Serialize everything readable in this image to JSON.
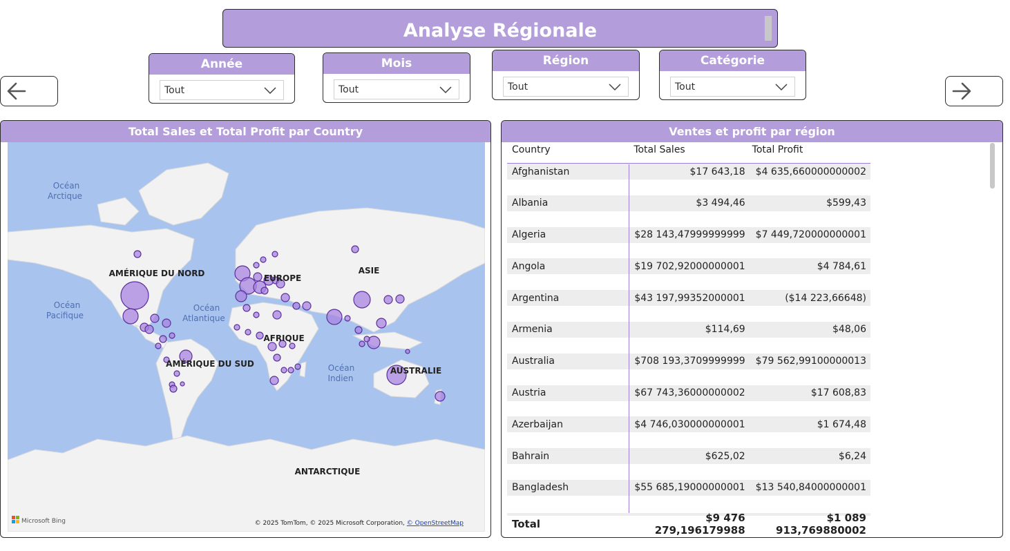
{
  "header": {
    "title": "Analyse Régionale"
  },
  "filters": [
    {
      "label": "Année",
      "value": "Tout"
    },
    {
      "label": "Mois",
      "value": "Tout"
    },
    {
      "label": "Région",
      "value": "Tout"
    },
    {
      "label": "Catégorie",
      "value": "Tout"
    }
  ],
  "nav": {
    "back_icon": "arrow-left-icon",
    "forward_icon": "arrow-right-icon"
  },
  "map_panel": {
    "title": "Total Sales et Total Profit par Country",
    "labels": {
      "ocean_arctic_1": "Océan",
      "ocean_arctic_2": "Arctique",
      "ocean_pacific_1": "Océan",
      "ocean_pacific_2": "Pacifique",
      "ocean_atlantic_1": "Océan",
      "ocean_atlantic_2": "Atlantique",
      "ocean_indian_1": "Océan",
      "ocean_indian_2": "Indien",
      "north_america": "AMÉRIQUE DU NORD",
      "south_america": "AMÉRIQUE DU SUD",
      "europe": "EUROPE",
      "asia": "ASIE",
      "africa": "AFRIQUE",
      "australia": "AUSTRALIE",
      "antarctica": "ANTARCTIQUE"
    },
    "provider": "Microsoft Bing",
    "attribution": "© 2025 TomTom, © 2025 Microsoft Corporation, ",
    "attribution_link": "© OpenStreetMap",
    "colors": {
      "water": "#a8c3ee",
      "land": "#f2f2f2",
      "bubble": "#a884e0",
      "bubble_stroke": "#5b2f9a"
    }
  },
  "table_panel": {
    "title": "Ventes et profit par région",
    "columns": [
      "Country",
      "Total Sales",
      "Total Profit"
    ],
    "rows": [
      {
        "country": "Afghanistan",
        "sales": "$17 643,18",
        "profit": "$4 635,660000000002"
      },
      {
        "country": "Albania",
        "sales": "$3 494,46",
        "profit": "$599,43"
      },
      {
        "country": "Algeria",
        "sales": "$28 143,47999999999",
        "profit": "$7 449,720000000001"
      },
      {
        "country": "Angola",
        "sales": "$19 702,92000000001",
        "profit": "$4 784,61"
      },
      {
        "country": "Argentina",
        "sales": "$43 197,99352000001",
        "profit": "($14 223,66648)"
      },
      {
        "country": "Armenia",
        "sales": "$114,69",
        "profit": "$48,06"
      },
      {
        "country": "Australia",
        "sales": "$708 193,3709999999",
        "profit": "$79 562,99100000013"
      },
      {
        "country": "Austria",
        "sales": "$67 743,36000000002",
        "profit": "$17 608,83"
      },
      {
        "country": "Azerbaijan",
        "sales": "$4 746,030000000001",
        "profit": "$1 674,48"
      },
      {
        "country": "Bahrain",
        "sales": "$625,02",
        "profit": "$6,24"
      },
      {
        "country": "Bangladesh",
        "sales": "$55 685,19000000001",
        "profit": "$13 540,84000000001"
      }
    ],
    "total": {
      "label": "Total",
      "sales": "$9 476 279,196179988",
      "profit": "$1 089 913,769880002"
    }
  }
}
